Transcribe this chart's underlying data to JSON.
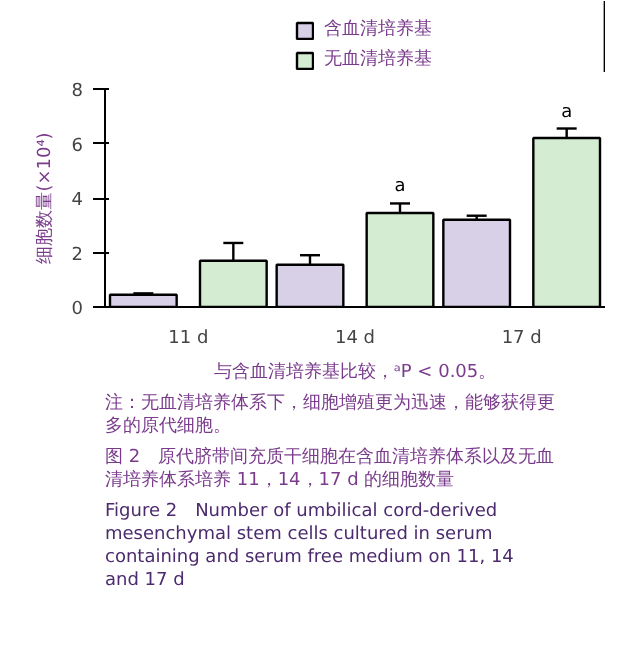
{
  "chart_data": {
    "type": "bar",
    "categories": [
      "11 d",
      "14 d",
      "17 d"
    ],
    "ylabel": "细胞数量(×10⁴)",
    "ylim": [
      0,
      8
    ],
    "yticks": [
      0,
      2,
      4,
      6,
      8
    ],
    "series": [
      {
        "name": "含血清培养基",
        "color": "#d8d0e6",
        "values": [
          0.45,
          1.55,
          3.2
        ],
        "errors": [
          0.05,
          0.35,
          0.15
        ]
      },
      {
        "name": "无血清培养基",
        "color": "#d4ecd2",
        "values": [
          1.7,
          3.45,
          6.2
        ],
        "errors": [
          0.65,
          0.35,
          0.35
        ],
        "value_labels": [
          null,
          "a",
          "a"
        ]
      }
    ],
    "legend": "top",
    "grid": false,
    "annotations": [
      "与含血清培养基比较，ᵃP < 0.05。",
      "注：无血清培养体系下，细胞增殖更为迅速，能够获得更多的原代细胞。",
      "图 2　原代脐带间充质干细胞在含血清培养体系以及无血清培养体系培养 11，14，17 d 的细胞数量",
      "Figure 2　Number of umbilical cord-derived mesenchymal stem cells cultured in serum containing and serum free medium on 11, 14 and 17 d"
    ]
  }
}
